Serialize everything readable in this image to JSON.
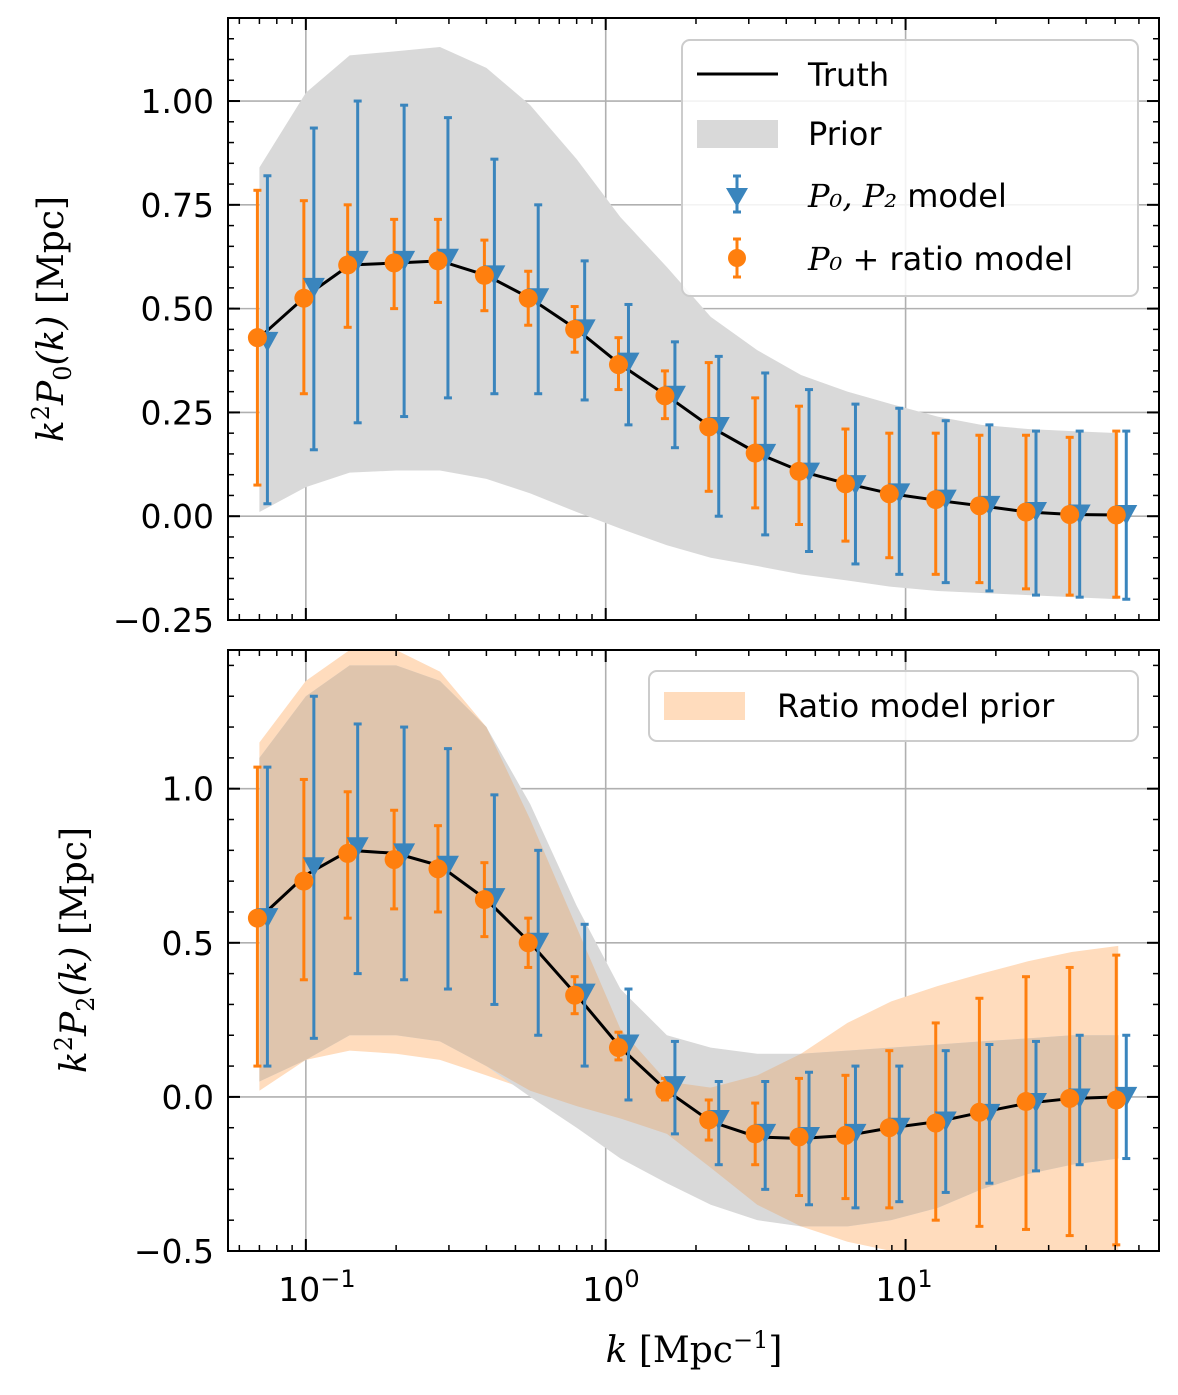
{
  "chart_data": [
    {
      "type": "line",
      "panel": "top",
      "title": "",
      "xscale": "log",
      "xlim": [
        0.055,
        70
      ],
      "ylim": [
        -0.25,
        1.2
      ],
      "xlabel": "",
      "ylabel": {
        "k": "k",
        "sup": "2",
        "P": "P",
        "sub": "0",
        "rest": "(k)",
        "unit": " [Mpc]"
      },
      "yticks": [
        -0.25,
        0.0,
        0.25,
        0.5,
        0.75,
        1.0
      ],
      "ytick_labels": [
        "−0.25",
        "0.00",
        "0.25",
        "0.50",
        "0.75",
        "1.00"
      ],
      "grid": true,
      "legend": {
        "location": "top-right",
        "entries": [
          {
            "kind": "line",
            "color": "#000000",
            "label": "Truth",
            "math": ""
          },
          {
            "kind": "band",
            "color": "#d9d9d9",
            "label": "Prior",
            "math": ""
          },
          {
            "kind": "tri",
            "color": "#2b7bba",
            "label": " model",
            "math": "P₀, P₂"
          },
          {
            "kind": "dot",
            "color": "#ff7f0e",
            "label": "ratio model",
            "math": "P₀ + "
          }
        ]
      },
      "k": [
        0.07,
        0.1,
        0.14,
        0.2,
        0.28,
        0.4,
        0.56,
        0.8,
        1.12,
        1.6,
        2.24,
        3.2,
        4.48,
        6.4,
        8.96,
        12.8,
        17.9,
        25.6,
        35.8,
        51.2
      ],
      "truth": [
        0.43,
        0.53,
        0.605,
        0.61,
        0.615,
        0.58,
        0.525,
        0.45,
        0.365,
        0.29,
        0.215,
        0.152,
        0.108,
        0.078,
        0.054,
        0.038,
        0.025,
        0.01,
        0.004,
        0.003
      ],
      "prior_band": {
        "k": [
          0.07,
          0.1,
          0.14,
          0.2,
          0.28,
          0.4,
          0.56,
          0.8,
          1.12,
          1.6,
          2.24,
          3.2,
          4.48,
          6.4,
          8.96,
          12.8,
          17.9,
          25.6,
          35.8,
          51.2
        ],
        "upper": [
          0.84,
          1.02,
          1.11,
          1.12,
          1.13,
          1.08,
          0.99,
          0.86,
          0.72,
          0.6,
          0.48,
          0.4,
          0.34,
          0.3,
          0.27,
          0.24,
          0.22,
          0.21,
          0.205,
          0.2
        ],
        "lower": [
          0.01,
          0.07,
          0.105,
          0.11,
          0.11,
          0.09,
          0.055,
          0.01,
          -0.03,
          -0.07,
          -0.1,
          -0.12,
          -0.14,
          -0.155,
          -0.17,
          -0.18,
          -0.185,
          -0.19,
          -0.195,
          -0.2
        ],
        "color": "#d9d9d9"
      },
      "series": [
        {
          "name": "P0, P2 model",
          "marker": "triangle-down",
          "color": "#3a85bd",
          "values": [
            0.42,
            0.55,
            0.615,
            0.615,
            0.62,
            0.58,
            0.525,
            0.45,
            0.37,
            0.29,
            0.215,
            0.15,
            0.105,
            0.075,
            0.055,
            0.04,
            0.025,
            0.01,
            0.004,
            0.003
          ],
          "err_low": [
            0.03,
            0.16,
            0.225,
            0.24,
            0.285,
            0.295,
            0.295,
            0.28,
            0.22,
            0.165,
            0.0,
            -0.045,
            -0.085,
            -0.115,
            -0.14,
            -0.16,
            -0.18,
            -0.19,
            -0.195,
            -0.2
          ],
          "err_high": [
            0.82,
            0.935,
            1.0,
            0.99,
            0.96,
            0.86,
            0.75,
            0.615,
            0.51,
            0.42,
            0.385,
            0.345,
            0.305,
            0.27,
            0.26,
            0.23,
            0.22,
            0.205,
            0.205,
            0.205
          ]
        },
        {
          "name": "P0 + ratio model",
          "marker": "circle",
          "color": "#ff7f0e",
          "values": [
            0.43,
            0.525,
            0.605,
            0.61,
            0.615,
            0.58,
            0.525,
            0.45,
            0.365,
            0.29,
            0.215,
            0.152,
            0.108,
            0.078,
            0.054,
            0.04,
            0.025,
            0.01,
            0.004,
            0.003
          ],
          "err_low": [
            0.075,
            0.295,
            0.455,
            0.5,
            0.515,
            0.495,
            0.46,
            0.395,
            0.305,
            0.235,
            0.06,
            0.02,
            -0.02,
            -0.06,
            -0.1,
            -0.14,
            -0.16,
            -0.175,
            -0.19,
            -0.195
          ],
          "err_high": [
            0.785,
            0.76,
            0.75,
            0.715,
            0.715,
            0.665,
            0.59,
            0.505,
            0.43,
            0.35,
            0.37,
            0.285,
            0.265,
            0.21,
            0.2,
            0.2,
            0.195,
            0.195,
            0.19,
            0.205
          ]
        }
      ]
    },
    {
      "type": "line",
      "panel": "bottom",
      "title": "",
      "xscale": "log",
      "xlim": [
        0.055,
        70
      ],
      "ylim": [
        -0.5,
        1.45
      ],
      "xlabel": {
        "k": "k",
        "unit": " [Mpc",
        "sup": "−1",
        "close": "]"
      },
      "ylabel": {
        "k": "k",
        "sup": "2",
        "P": "P",
        "sub": "2",
        "rest": "(k)",
        "unit": " [Mpc]"
      },
      "yticks": [
        -0.5,
        0.0,
        0.5,
        1.0
      ],
      "ytick_labels": [
        "−0.5",
        "0.0",
        "0.5",
        "1.0"
      ],
      "xticks": [
        0.1,
        1,
        10
      ],
      "xtick_labels": [
        {
          "base": "10",
          "exp": "−1"
        },
        {
          "base": "10",
          "exp": "0"
        },
        {
          "base": "10",
          "exp": "1"
        }
      ],
      "grid": true,
      "legend": {
        "location": "top-right",
        "entries": [
          {
            "kind": "band",
            "color": "#ffdcbd",
            "label": "Ratio model prior",
            "math": ""
          }
        ]
      },
      "k": [
        0.07,
        0.1,
        0.14,
        0.2,
        0.28,
        0.4,
        0.56,
        0.8,
        1.12,
        1.6,
        2.24,
        3.2,
        4.48,
        6.4,
        8.96,
        12.8,
        17.9,
        25.6,
        35.8,
        51.2
      ],
      "truth": [
        0.58,
        0.72,
        0.8,
        0.79,
        0.75,
        0.64,
        0.5,
        0.33,
        0.16,
        0.02,
        -0.08,
        -0.13,
        -0.135,
        -0.125,
        -0.1,
        -0.08,
        -0.05,
        -0.02,
        -0.005,
        0.0
      ],
      "prior_band": {
        "k": [
          0.07,
          0.1,
          0.14,
          0.2,
          0.28,
          0.4,
          0.56,
          0.8,
          1.12,
          1.6,
          2.24,
          3.2,
          4.48,
          6.4,
          8.96,
          12.8,
          17.9,
          25.6,
          35.8,
          51.2
        ],
        "upper": [
          1.1,
          1.3,
          1.4,
          1.4,
          1.35,
          1.2,
          0.95,
          0.62,
          0.35,
          0.2,
          0.16,
          0.14,
          0.14,
          0.15,
          0.16,
          0.17,
          0.18,
          0.19,
          0.2,
          0.2
        ],
        "lower": [
          0.05,
          0.12,
          0.2,
          0.2,
          0.18,
          0.1,
          0.0,
          -0.1,
          -0.2,
          -0.28,
          -0.35,
          -0.4,
          -0.42,
          -0.42,
          -0.4,
          -0.36,
          -0.3,
          -0.25,
          -0.22,
          -0.2
        ],
        "color": "#d9d9d9"
      },
      "ratio_prior_band": {
        "k": [
          0.07,
          0.1,
          0.14,
          0.2,
          0.28,
          0.4,
          0.56,
          0.8,
          1.12,
          1.6,
          2.24,
          3.2,
          4.48,
          6.4,
          8.96,
          12.8,
          17.9,
          25.6,
          35.8,
          51.2
        ],
        "upper": [
          1.15,
          1.35,
          1.45,
          1.45,
          1.38,
          1.2,
          0.9,
          0.55,
          0.22,
          0.05,
          0.03,
          0.07,
          0.14,
          0.24,
          0.31,
          0.36,
          0.4,
          0.44,
          0.47,
          0.49
        ],
        "lower": [
          0.02,
          0.12,
          0.15,
          0.14,
          0.12,
          0.07,
          0.02,
          -0.03,
          -0.07,
          -0.12,
          -0.23,
          -0.35,
          -0.42,
          -0.47,
          -0.5,
          -0.5,
          -0.5,
          -0.5,
          -0.5,
          -0.5
        ],
        "color": "#ffdcbd"
      },
      "series": [
        {
          "name": "P0, P2 model",
          "marker": "triangle-down",
          "color": "#3a85bd",
          "values": [
            0.58,
            0.745,
            0.81,
            0.79,
            0.75,
            0.645,
            0.5,
            0.335,
            0.17,
            0.035,
            -0.075,
            -0.12,
            -0.13,
            -0.12,
            -0.1,
            -0.08,
            -0.055,
            -0.02,
            -0.005,
            0.0
          ],
          "err_low": [
            0.1,
            0.19,
            0.4,
            0.38,
            0.35,
            0.3,
            0.2,
            0.1,
            -0.01,
            -0.12,
            -0.22,
            -0.3,
            -0.35,
            -0.36,
            -0.34,
            -0.31,
            -0.28,
            -0.24,
            -0.22,
            -0.2
          ],
          "err_high": [
            1.07,
            1.3,
            1.21,
            1.2,
            1.13,
            0.98,
            0.8,
            0.56,
            0.35,
            0.18,
            0.05,
            0.05,
            0.08,
            0.1,
            0.1,
            0.15,
            0.17,
            0.18,
            0.2,
            0.2
          ]
        },
        {
          "name": "P0 + ratio model",
          "marker": "circle",
          "color": "#ff7f0e",
          "values": [
            0.58,
            0.7,
            0.79,
            0.77,
            0.74,
            0.64,
            0.5,
            0.33,
            0.16,
            0.02,
            -0.075,
            -0.12,
            -0.13,
            -0.125,
            -0.1,
            -0.085,
            -0.05,
            -0.015,
            -0.005,
            -0.01
          ],
          "err_low": [
            0.1,
            0.38,
            0.58,
            0.61,
            0.6,
            0.52,
            0.42,
            0.27,
            0.12,
            -0.01,
            -0.14,
            -0.22,
            -0.32,
            -0.33,
            -0.36,
            -0.4,
            -0.42,
            -0.43,
            -0.45,
            -0.48
          ],
          "err_high": [
            1.07,
            1.03,
            0.99,
            0.93,
            0.88,
            0.76,
            0.58,
            0.39,
            0.21,
            0.06,
            -0.01,
            -0.02,
            0.06,
            0.07,
            0.15,
            0.24,
            0.32,
            0.39,
            0.42,
            0.46
          ]
        }
      ]
    }
  ]
}
